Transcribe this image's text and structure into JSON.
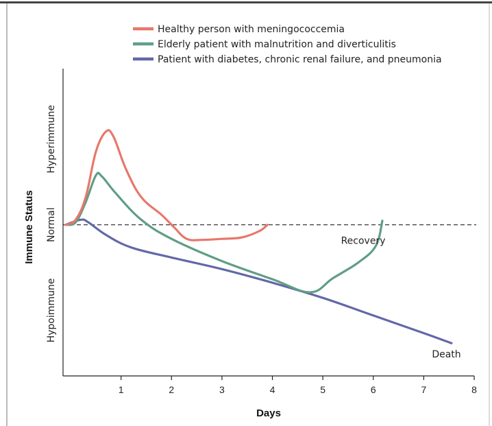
{
  "chart_data": {
    "type": "line",
    "xlabel": "Days",
    "ylabel": "Immune Status",
    "xlim": [
      -0.15,
      8
    ],
    "ylim": [
      -3,
      3.1
    ],
    "x_ticks": [
      1,
      2,
      3,
      4,
      5,
      6,
      7,
      8
    ],
    "y_categories": [
      {
        "label": "Hyperimmune",
        "value": 1.7
      },
      {
        "label": "Normal",
        "value": 0
      },
      {
        "label": "Hypoimmune",
        "value": -1.7
      }
    ],
    "reference_line": {
      "y": 0,
      "style": "dashed"
    },
    "legend_position": "top-right",
    "series": [
      {
        "name": "Healthy person with meningococcemia",
        "color": "#e8776a",
        "points": [
          [
            -0.1,
            0
          ],
          [
            0.1,
            0.1
          ],
          [
            0.3,
            0.55
          ],
          [
            0.5,
            1.45
          ],
          [
            0.7,
            1.85
          ],
          [
            0.85,
            1.75
          ],
          [
            1.1,
            1.1
          ],
          [
            1.4,
            0.55
          ],
          [
            1.8,
            0.2
          ],
          [
            2.05,
            -0.05
          ],
          [
            2.3,
            -0.28
          ],
          [
            2.6,
            -0.3
          ],
          [
            3.0,
            -0.28
          ],
          [
            3.4,
            -0.25
          ],
          [
            3.75,
            -0.12
          ],
          [
            3.9,
            0
          ]
        ]
      },
      {
        "name": "Elderly patient with malnutrition and diverticulitis",
        "color": "#5f9e85",
        "points": [
          [
            -0.1,
            0
          ],
          [
            0.1,
            0.05
          ],
          [
            0.3,
            0.45
          ],
          [
            0.5,
            0.98
          ],
          [
            0.62,
            0.96
          ],
          [
            0.9,
            0.62
          ],
          [
            1.4,
            0.1
          ],
          [
            2.0,
            -0.28
          ],
          [
            3.0,
            -0.72
          ],
          [
            4.0,
            -1.08
          ],
          [
            4.75,
            -1.34
          ],
          [
            5.2,
            -1.06
          ],
          [
            5.7,
            -0.75
          ],
          [
            6.05,
            -0.42
          ],
          [
            6.18,
            0.08
          ]
        ]
      },
      {
        "name": "Patient with diabetes, chronic renal failure, and pneumonia",
        "color": "#6268a8",
        "points": [
          [
            -0.1,
            0
          ],
          [
            0.2,
            0.1
          ],
          [
            0.35,
            0.05
          ],
          [
            0.7,
            -0.2
          ],
          [
            1.2,
            -0.45
          ],
          [
            2.0,
            -0.65
          ],
          [
            3.0,
            -0.88
          ],
          [
            4.0,
            -1.15
          ],
          [
            5.0,
            -1.45
          ],
          [
            6.0,
            -1.8
          ],
          [
            7.0,
            -2.15
          ],
          [
            7.55,
            -2.35
          ]
        ]
      }
    ],
    "annotations": [
      {
        "text": "Recovery",
        "x": 5.8,
        "y": -0.38
      },
      {
        "text": "Death",
        "x": 7.45,
        "y": -2.63
      }
    ]
  }
}
